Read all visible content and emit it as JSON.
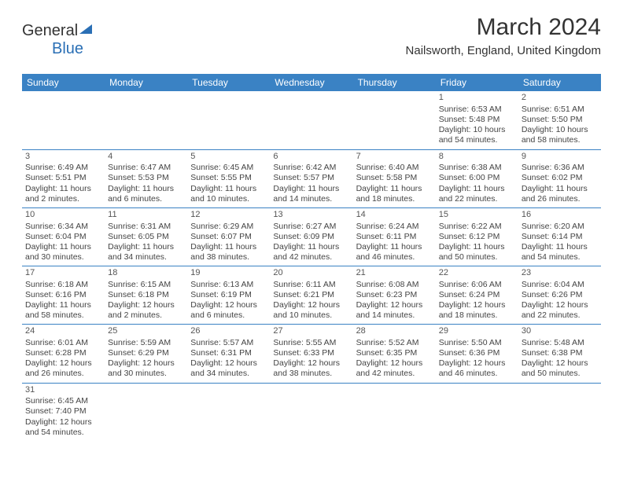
{
  "logo": {
    "part1": "General",
    "part2": "Blue"
  },
  "title": "March 2024",
  "subtitle": "Nailsworth, England, United Kingdom",
  "colors": {
    "header_bg": "#3a82c4",
    "header_text": "#ffffff",
    "border": "#3a82c4",
    "text": "#444444",
    "logo_blue": "#2a6fb5"
  },
  "days_of_week": [
    "Sunday",
    "Monday",
    "Tuesday",
    "Wednesday",
    "Thursday",
    "Friday",
    "Saturday"
  ],
  "weeks": [
    [
      null,
      null,
      null,
      null,
      null,
      {
        "n": "1",
        "sunrise": "6:53 AM",
        "sunset": "5:48 PM",
        "daylight": "10 hours and 54 minutes."
      },
      {
        "n": "2",
        "sunrise": "6:51 AM",
        "sunset": "5:50 PM",
        "daylight": "10 hours and 58 minutes."
      }
    ],
    [
      {
        "n": "3",
        "sunrise": "6:49 AM",
        "sunset": "5:51 PM",
        "daylight": "11 hours and 2 minutes."
      },
      {
        "n": "4",
        "sunrise": "6:47 AM",
        "sunset": "5:53 PM",
        "daylight": "11 hours and 6 minutes."
      },
      {
        "n": "5",
        "sunrise": "6:45 AM",
        "sunset": "5:55 PM",
        "daylight": "11 hours and 10 minutes."
      },
      {
        "n": "6",
        "sunrise": "6:42 AM",
        "sunset": "5:57 PM",
        "daylight": "11 hours and 14 minutes."
      },
      {
        "n": "7",
        "sunrise": "6:40 AM",
        "sunset": "5:58 PM",
        "daylight": "11 hours and 18 minutes."
      },
      {
        "n": "8",
        "sunrise": "6:38 AM",
        "sunset": "6:00 PM",
        "daylight": "11 hours and 22 minutes."
      },
      {
        "n": "9",
        "sunrise": "6:36 AM",
        "sunset": "6:02 PM",
        "daylight": "11 hours and 26 minutes."
      }
    ],
    [
      {
        "n": "10",
        "sunrise": "6:34 AM",
        "sunset": "6:04 PM",
        "daylight": "11 hours and 30 minutes."
      },
      {
        "n": "11",
        "sunrise": "6:31 AM",
        "sunset": "6:05 PM",
        "daylight": "11 hours and 34 minutes."
      },
      {
        "n": "12",
        "sunrise": "6:29 AM",
        "sunset": "6:07 PM",
        "daylight": "11 hours and 38 minutes."
      },
      {
        "n": "13",
        "sunrise": "6:27 AM",
        "sunset": "6:09 PM",
        "daylight": "11 hours and 42 minutes."
      },
      {
        "n": "14",
        "sunrise": "6:24 AM",
        "sunset": "6:11 PM",
        "daylight": "11 hours and 46 minutes."
      },
      {
        "n": "15",
        "sunrise": "6:22 AM",
        "sunset": "6:12 PM",
        "daylight": "11 hours and 50 minutes."
      },
      {
        "n": "16",
        "sunrise": "6:20 AM",
        "sunset": "6:14 PM",
        "daylight": "11 hours and 54 minutes."
      }
    ],
    [
      {
        "n": "17",
        "sunrise": "6:18 AM",
        "sunset": "6:16 PM",
        "daylight": "11 hours and 58 minutes."
      },
      {
        "n": "18",
        "sunrise": "6:15 AM",
        "sunset": "6:18 PM",
        "daylight": "12 hours and 2 minutes."
      },
      {
        "n": "19",
        "sunrise": "6:13 AM",
        "sunset": "6:19 PM",
        "daylight": "12 hours and 6 minutes."
      },
      {
        "n": "20",
        "sunrise": "6:11 AM",
        "sunset": "6:21 PM",
        "daylight": "12 hours and 10 minutes."
      },
      {
        "n": "21",
        "sunrise": "6:08 AM",
        "sunset": "6:23 PM",
        "daylight": "12 hours and 14 minutes."
      },
      {
        "n": "22",
        "sunrise": "6:06 AM",
        "sunset": "6:24 PM",
        "daylight": "12 hours and 18 minutes."
      },
      {
        "n": "23",
        "sunrise": "6:04 AM",
        "sunset": "6:26 PM",
        "daylight": "12 hours and 22 minutes."
      }
    ],
    [
      {
        "n": "24",
        "sunrise": "6:01 AM",
        "sunset": "6:28 PM",
        "daylight": "12 hours and 26 minutes."
      },
      {
        "n": "25",
        "sunrise": "5:59 AM",
        "sunset": "6:29 PM",
        "daylight": "12 hours and 30 minutes."
      },
      {
        "n": "26",
        "sunrise": "5:57 AM",
        "sunset": "6:31 PM",
        "daylight": "12 hours and 34 minutes."
      },
      {
        "n": "27",
        "sunrise": "5:55 AM",
        "sunset": "6:33 PM",
        "daylight": "12 hours and 38 minutes."
      },
      {
        "n": "28",
        "sunrise": "5:52 AM",
        "sunset": "6:35 PM",
        "daylight": "12 hours and 42 minutes."
      },
      {
        "n": "29",
        "sunrise": "5:50 AM",
        "sunset": "6:36 PM",
        "daylight": "12 hours and 46 minutes."
      },
      {
        "n": "30",
        "sunrise": "5:48 AM",
        "sunset": "6:38 PM",
        "daylight": "12 hours and 50 minutes."
      }
    ],
    [
      {
        "n": "31",
        "sunrise": "6:45 AM",
        "sunset": "7:40 PM",
        "daylight": "12 hours and 54 minutes."
      },
      null,
      null,
      null,
      null,
      null,
      null
    ]
  ],
  "labels": {
    "sunrise_prefix": "Sunrise: ",
    "sunset_prefix": "Sunset: ",
    "daylight_prefix": "Daylight: "
  }
}
